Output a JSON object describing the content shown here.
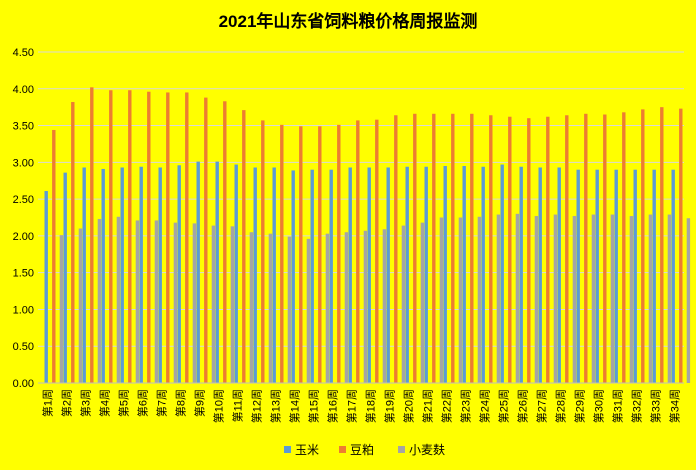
{
  "chart_data": {
    "type": "bar",
    "title": "2021年山东省饲料粮价格周报监测",
    "xlabel": "",
    "ylabel": "",
    "ylim": [
      0,
      4.5
    ],
    "yticks": [
      "0.00",
      "0.50",
      "1.00",
      "1.50",
      "2.00",
      "2.50",
      "3.00",
      "3.50",
      "4.00",
      "4.50"
    ],
    "grid": true,
    "legend_position": "bottom",
    "background": "#ffff00",
    "categories": [
      "第1周",
      "第2周",
      "第3周",
      "第4周",
      "第5周",
      "第6周",
      "第7周",
      "第8周",
      "第9周",
      "第10周",
      "第11周",
      "第12周",
      "第13周",
      "第14周",
      "第15周",
      "第16周",
      "第17周",
      "第18周",
      "第19周",
      "第20周",
      "第21周",
      "第22周",
      "第23周",
      "第24周",
      "第25周",
      "第26周",
      "第27周",
      "第28周",
      "第29周",
      "第30周",
      "第31周",
      "第32周",
      "第33周",
      "第34周"
    ],
    "series": [
      {
        "name": "玉米",
        "color": "#5b9bd5",
        "values": [
          2.61,
          2.86,
          2.93,
          2.91,
          2.93,
          2.94,
          2.93,
          2.96,
          3.01,
          3.01,
          2.97,
          2.93,
          2.93,
          2.89,
          2.9,
          2.9,
          2.93,
          2.93,
          2.93,
          2.94,
          2.94,
          2.95,
          2.95,
          2.94,
          2.97,
          2.94,
          2.93,
          2.93,
          2.9,
          2.9,
          2.9,
          2.9,
          2.9,
          2.9
        ]
      },
      {
        "name": "豆粕",
        "color": "#ed7d31",
        "values": [
          3.44,
          3.82,
          4.02,
          3.98,
          3.98,
          3.96,
          3.95,
          3.95,
          3.88,
          3.83,
          3.71,
          3.57,
          3.51,
          3.49,
          3.49,
          3.51,
          3.57,
          3.58,
          3.64,
          3.66,
          3.66,
          3.66,
          3.66,
          3.64,
          3.62,
          3.6,
          3.62,
          3.64,
          3.66,
          3.65,
          3.68,
          3.72,
          3.75,
          3.73
        ]
      },
      {
        "name": "小麦麸",
        "color": "#a5a5a5",
        "values": [
          2.01,
          2.1,
          2.23,
          2.26,
          2.21,
          2.21,
          2.18,
          2.17,
          2.14,
          2.13,
          2.05,
          2.03,
          1.99,
          1.96,
          2.03,
          2.05,
          2.07,
          2.09,
          2.14,
          2.18,
          2.25,
          2.25,
          2.26,
          2.29,
          2.3,
          2.27,
          2.29,
          2.27,
          2.29,
          2.29,
          2.27,
          2.29,
          2.29,
          2.24
        ]
      }
    ]
  }
}
